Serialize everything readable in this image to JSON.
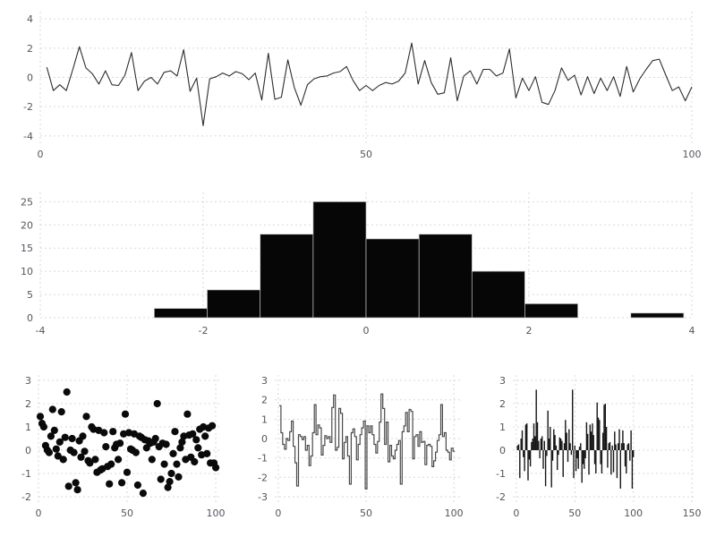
{
  "figure": {
    "background": "#ffffff",
    "grid_color": "#d7d8e3",
    "tick_label_color": "#55555e",
    "title": ""
  },
  "chart_data": [
    {
      "id": "line-plot",
      "type": "line",
      "title": "",
      "xlabel": "",
      "ylabel": "",
      "color": "#2d2d2d",
      "grid": true,
      "legend": "none",
      "xlim": [
        0,
        100
      ],
      "ylim": [
        -4.5,
        4.5
      ],
      "x_ticks": [
        0,
        50,
        100
      ],
      "y_ticks": [
        -4,
        -2,
        0,
        2,
        4
      ],
      "x_start": 1,
      "x_step": 1,
      "y": [
        0.7,
        -0.9,
        -0.5,
        -0.9,
        0.55,
        2.1,
        0.65,
        0.25,
        -0.45,
        0.45,
        -0.5,
        -0.55,
        0.15,
        1.7,
        -0.9,
        -0.25,
        0,
        -0.45,
        0.35,
        0.45,
        0.1,
        1.9,
        -0.95,
        -0.05,
        -3.3,
        -0.1,
        0.05,
        0.3,
        0.1,
        0.4,
        0.25,
        -0.15,
        0.3,
        -1.55,
        1.65,
        -1.5,
        -1.35,
        1.2,
        -0.7,
        -1.9,
        -0.5,
        -0.1,
        0.05,
        0.1,
        0.3,
        0.4,
        0.75,
        -0.2,
        -0.9,
        -0.55,
        -0.9,
        -0.55,
        -0.35,
        -0.45,
        -0.25,
        0.3,
        2.35,
        -0.45,
        1.15,
        -0.35,
        -1.15,
        -1.05,
        1.35,
        -1.6,
        0.1,
        0.45,
        -0.45,
        0.55,
        0.55,
        0.1,
        0.3,
        1.95,
        -1.4,
        -0.05,
        -0.9,
        0.05,
        -1.7,
        -1.85,
        -0.9,
        0.65,
        -0.2,
        0.15,
        -1.2,
        0.05,
        -1.1,
        -0.05,
        -0.9,
        0.05,
        -1.3,
        0.75,
        -1,
        -0.1,
        0.55,
        1.15,
        1.25,
        0.15,
        -0.9,
        -0.65,
        -1.6,
        -0.65
      ]
    },
    {
      "id": "histogram",
      "type": "bar",
      "title": "",
      "xlabel": "",
      "ylabel": "",
      "color": "#060606",
      "grid": true,
      "legend": "none",
      "xlim": [
        -4,
        4
      ],
      "ylim": [
        0,
        27
      ],
      "x_ticks": [
        -4,
        -2,
        0,
        2,
        4
      ],
      "y_ticks": [
        0,
        5,
        10,
        15,
        20,
        25
      ],
      "bin_start": -2.6,
      "bin_width": 0.65,
      "counts": [
        2,
        6,
        18,
        25,
        17,
        18,
        10,
        3,
        0,
        1
      ]
    },
    {
      "id": "scatter-plot",
      "type": "scatter",
      "title": "",
      "xlabel": "",
      "ylabel": "",
      "color": "#0a0a0a",
      "grid": true,
      "legend": "none",
      "xlim": [
        0,
        103
      ],
      "ylim": [
        -2.23,
        3.23
      ],
      "x_ticks": [
        0,
        50,
        100
      ],
      "y_ticks": [
        -2,
        -1,
        0,
        1,
        2,
        3
      ],
      "x_start": 1,
      "x_step": 1,
      "y": [
        1.45,
        1.15,
        1,
        0.2,
        0,
        -0.1,
        0.6,
        1.75,
        0.85,
        0.05,
        -0.25,
        0.35,
        1.65,
        -0.4,
        0.55,
        2.5,
        -1.55,
        0,
        0.5,
        -0.1,
        -1.4,
        -1.7,
        0.4,
        -0.3,
        0.6,
        -0.05,
        1.45,
        -0.45,
        -0.55,
        1,
        0.9,
        -0.4,
        -0.95,
        0.85,
        -0.85,
        -0.8,
        0.75,
        0.15,
        -0.7,
        -1.45,
        -0.6,
        0.8,
        0.1,
        0.25,
        -0.4,
        0.3,
        -1.4,
        0.7,
        1.55,
        -0.95,
        0.75,
        0.05,
        0,
        0.7,
        -0.1,
        -1.5,
        0.6,
        0.55,
        -1.85,
        0.45,
        0.1,
        0.4,
        0.3,
        -0.4,
        0.35,
        0.5,
        2,
        0.15,
        -1.25,
        0.3,
        -0.6,
        0.25,
        -1.6,
        -1.35,
        -1,
        -0.15,
        0.8,
        -0.6,
        -1.15,
        0.1,
        0.35,
        0.6,
        -0.4,
        1.55,
        0.65,
        -0.3,
        0.7,
        -0.5,
        0.45,
        0.1,
        0.9,
        -0.2,
        1,
        0.6,
        -0.15,
        0.95,
        -0.55,
        1.05,
        -0.55,
        -0.75
      ]
    },
    {
      "id": "step-plot",
      "type": "steps",
      "title": "",
      "xlabel": "",
      "ylabel": "",
      "color": "#4a4a4a",
      "grid": true,
      "legend": "none",
      "xlim": [
        -2,
        105
      ],
      "ylim": [
        -3.28,
        3.28
      ],
      "x_ticks": [
        0,
        50,
        100
      ],
      "y_ticks": [
        -3,
        -2,
        -1,
        0,
        1,
        2,
        3
      ],
      "x_start": 1,
      "x_step": 1,
      "y": [
        1.7,
        0.3,
        -0.3,
        -0.55,
        0,
        -0.1,
        0.35,
        0.9,
        -0.4,
        -1.25,
        -2.45,
        0.2,
        0.1,
        -0.05,
        0.1,
        -0.6,
        -0.35,
        -1.4,
        -0.9,
        0.3,
        1.75,
        0.2,
        0.7,
        0.55,
        -0.85,
        -0.35,
        0.15,
        0,
        0.1,
        -0.2,
        1.6,
        2.25,
        -0.6,
        -0.45,
        1.55,
        1.3,
        -1.05,
        -0.2,
        0.1,
        -0.9,
        -2.35,
        0.3,
        0.5,
        0.1,
        -1.1,
        -0.3,
        0.2,
        0.55,
        0.9,
        -2.6,
        0.65,
        0.3,
        0.65,
        0.2,
        -0.3,
        -0.75,
        -0.15,
        0.85,
        2.3,
        1.55,
        -0.3,
        0.85,
        -1.2,
        -0.35,
        -0.9,
        -1.05,
        -0.6,
        -0.3,
        -0.1,
        -2.35,
        0.35,
        0.65,
        1.35,
        0.35,
        1.5,
        1.4,
        -1.05,
        0.1,
        0.2,
        -0.4,
        0.35,
        -0.2,
        -0.15,
        -1.35,
        -0.35,
        -0.3,
        -0.4,
        -1.45,
        -1.15,
        -0.7,
        -0.1,
        0.2,
        1.75,
        0.1,
        0.3,
        -0.6,
        -0.7,
        -1.1,
        -0.5,
        -0.65
      ]
    },
    {
      "id": "impulse-plot",
      "type": "impulses",
      "title": "",
      "xlabel": "",
      "ylabel": "",
      "color": "#161616",
      "grid": true,
      "legend": "none",
      "xlim": [
        -3,
        153
      ],
      "ylim": [
        -2.23,
        3.23
      ],
      "x_ticks": [
        0,
        50,
        100,
        150
      ],
      "y_ticks": [
        -2,
        -1,
        0,
        1,
        2,
        3
      ],
      "x_start": 1,
      "x_step": 1,
      "y": [
        0.2,
        0.25,
        -1.2,
        0.5,
        0.85,
        -0.3,
        -0.9,
        1.1,
        1.15,
        -1.3,
        -0.4,
        -0.7,
        0.35,
        0.5,
        1.15,
        0.6,
        2.6,
        1.2,
        0.4,
        -0.35,
        0.5,
        0.6,
        -0.8,
        0.4,
        -1.55,
        -0.25,
        1.7,
        0.5,
        1,
        -1.6,
        -0.45,
        0.9,
        0.65,
        0.2,
        -0.85,
        -0.2,
        0.55,
        0.5,
        0.4,
        -1.15,
        0.3,
        1.3,
        0.75,
        -0.5,
        0.9,
        0.3,
        -0.2,
        2.6,
        -1.2,
        0.2,
        -0.9,
        -0.35,
        -0.8,
        0.15,
        0.3,
        -1.4,
        -0.6,
        -0.8,
        -0.35,
        1.2,
        0.7,
        -1.05,
        1.1,
        0.8,
        1.15,
        0.65,
        -0.6,
        -1,
        2.05,
        1.4,
        1.3,
        -0.6,
        -1,
        0.75,
        1.95,
        2,
        1,
        -0.75,
        0.3,
        0.35,
        -1.05,
        0.2,
        -0.95,
        0.8,
        0.25,
        -1.2,
        0.3,
        0.9,
        -1.65,
        0.3,
        0.85,
        0.3,
        -0.7,
        -1,
        0.25,
        0.3,
        -0.45,
        0.85,
        -1.65,
        -0.3
      ]
    }
  ]
}
